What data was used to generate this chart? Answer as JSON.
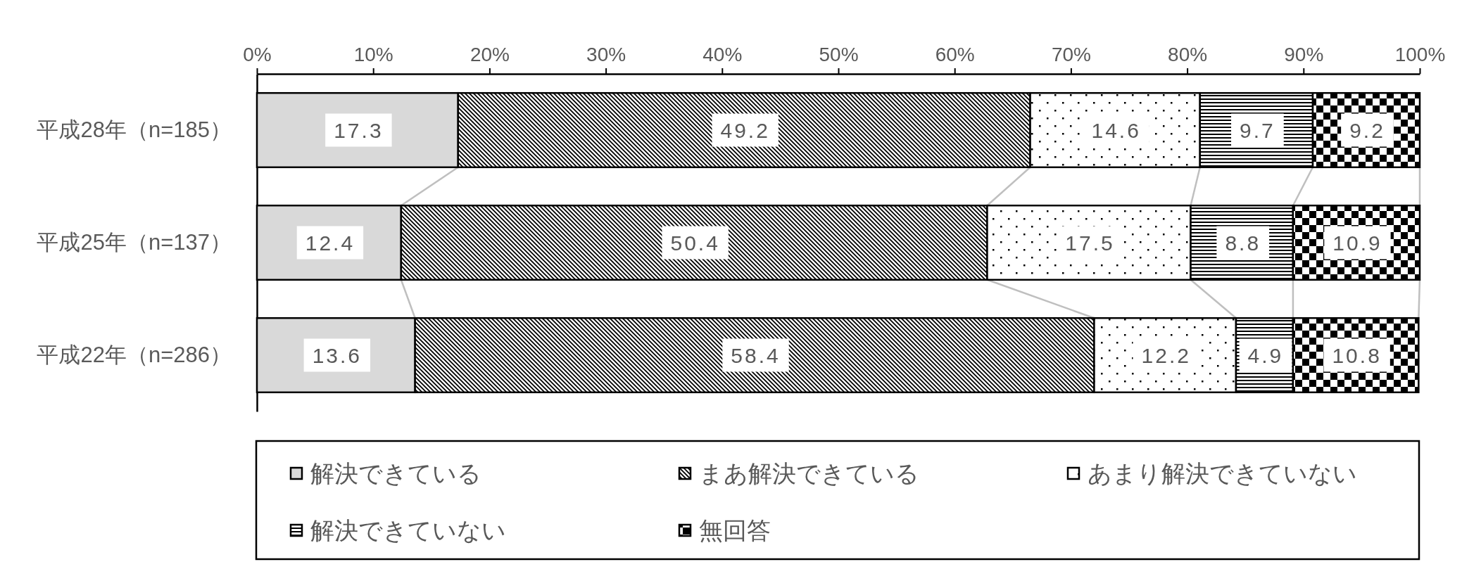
{
  "chart_data": {
    "type": "bar",
    "orientation": "horizontal",
    "stacked": true,
    "categories": [
      "平成28年（n=185）",
      "平成25年（n=137）",
      "平成22年（n=286）"
    ],
    "series": [
      {
        "name": "解決できている",
        "color": "#d9d9d9",
        "values": [
          17.3,
          12.4,
          13.6
        ]
      },
      {
        "name": "まあ解決できている",
        "color": "#000000",
        "values": [
          49.2,
          50.4,
          58.4
        ]
      },
      {
        "name": "あまり解決できていない",
        "color": "#000000",
        "values": [
          14.6,
          17.5,
          12.2
        ]
      },
      {
        "name": "解決できていない",
        "color": "#000000",
        "values": [
          9.7,
          8.8,
          4.9
        ]
      },
      {
        "name": "無回答",
        "color": "#000000",
        "values": [
          9.2,
          10.9,
          10.8
        ]
      }
    ],
    "xlim": [
      0,
      100
    ],
    "xticks": [
      {
        "value": 0,
        "label": "0%"
      },
      {
        "value": 10,
        "label": "10%"
      },
      {
        "value": 20,
        "label": "20%"
      },
      {
        "value": 30,
        "label": "30%"
      },
      {
        "value": 40,
        "label": "40%"
      },
      {
        "value": 50,
        "label": "50%"
      },
      {
        "value": 60,
        "label": "60%"
      },
      {
        "value": 70,
        "label": "70%"
      },
      {
        "value": 80,
        "label": "80%"
      },
      {
        "value": 90,
        "label": "90%"
      },
      {
        "value": 100,
        "label": "100%"
      }
    ],
    "data_labels": true,
    "legend": "bottom"
  }
}
